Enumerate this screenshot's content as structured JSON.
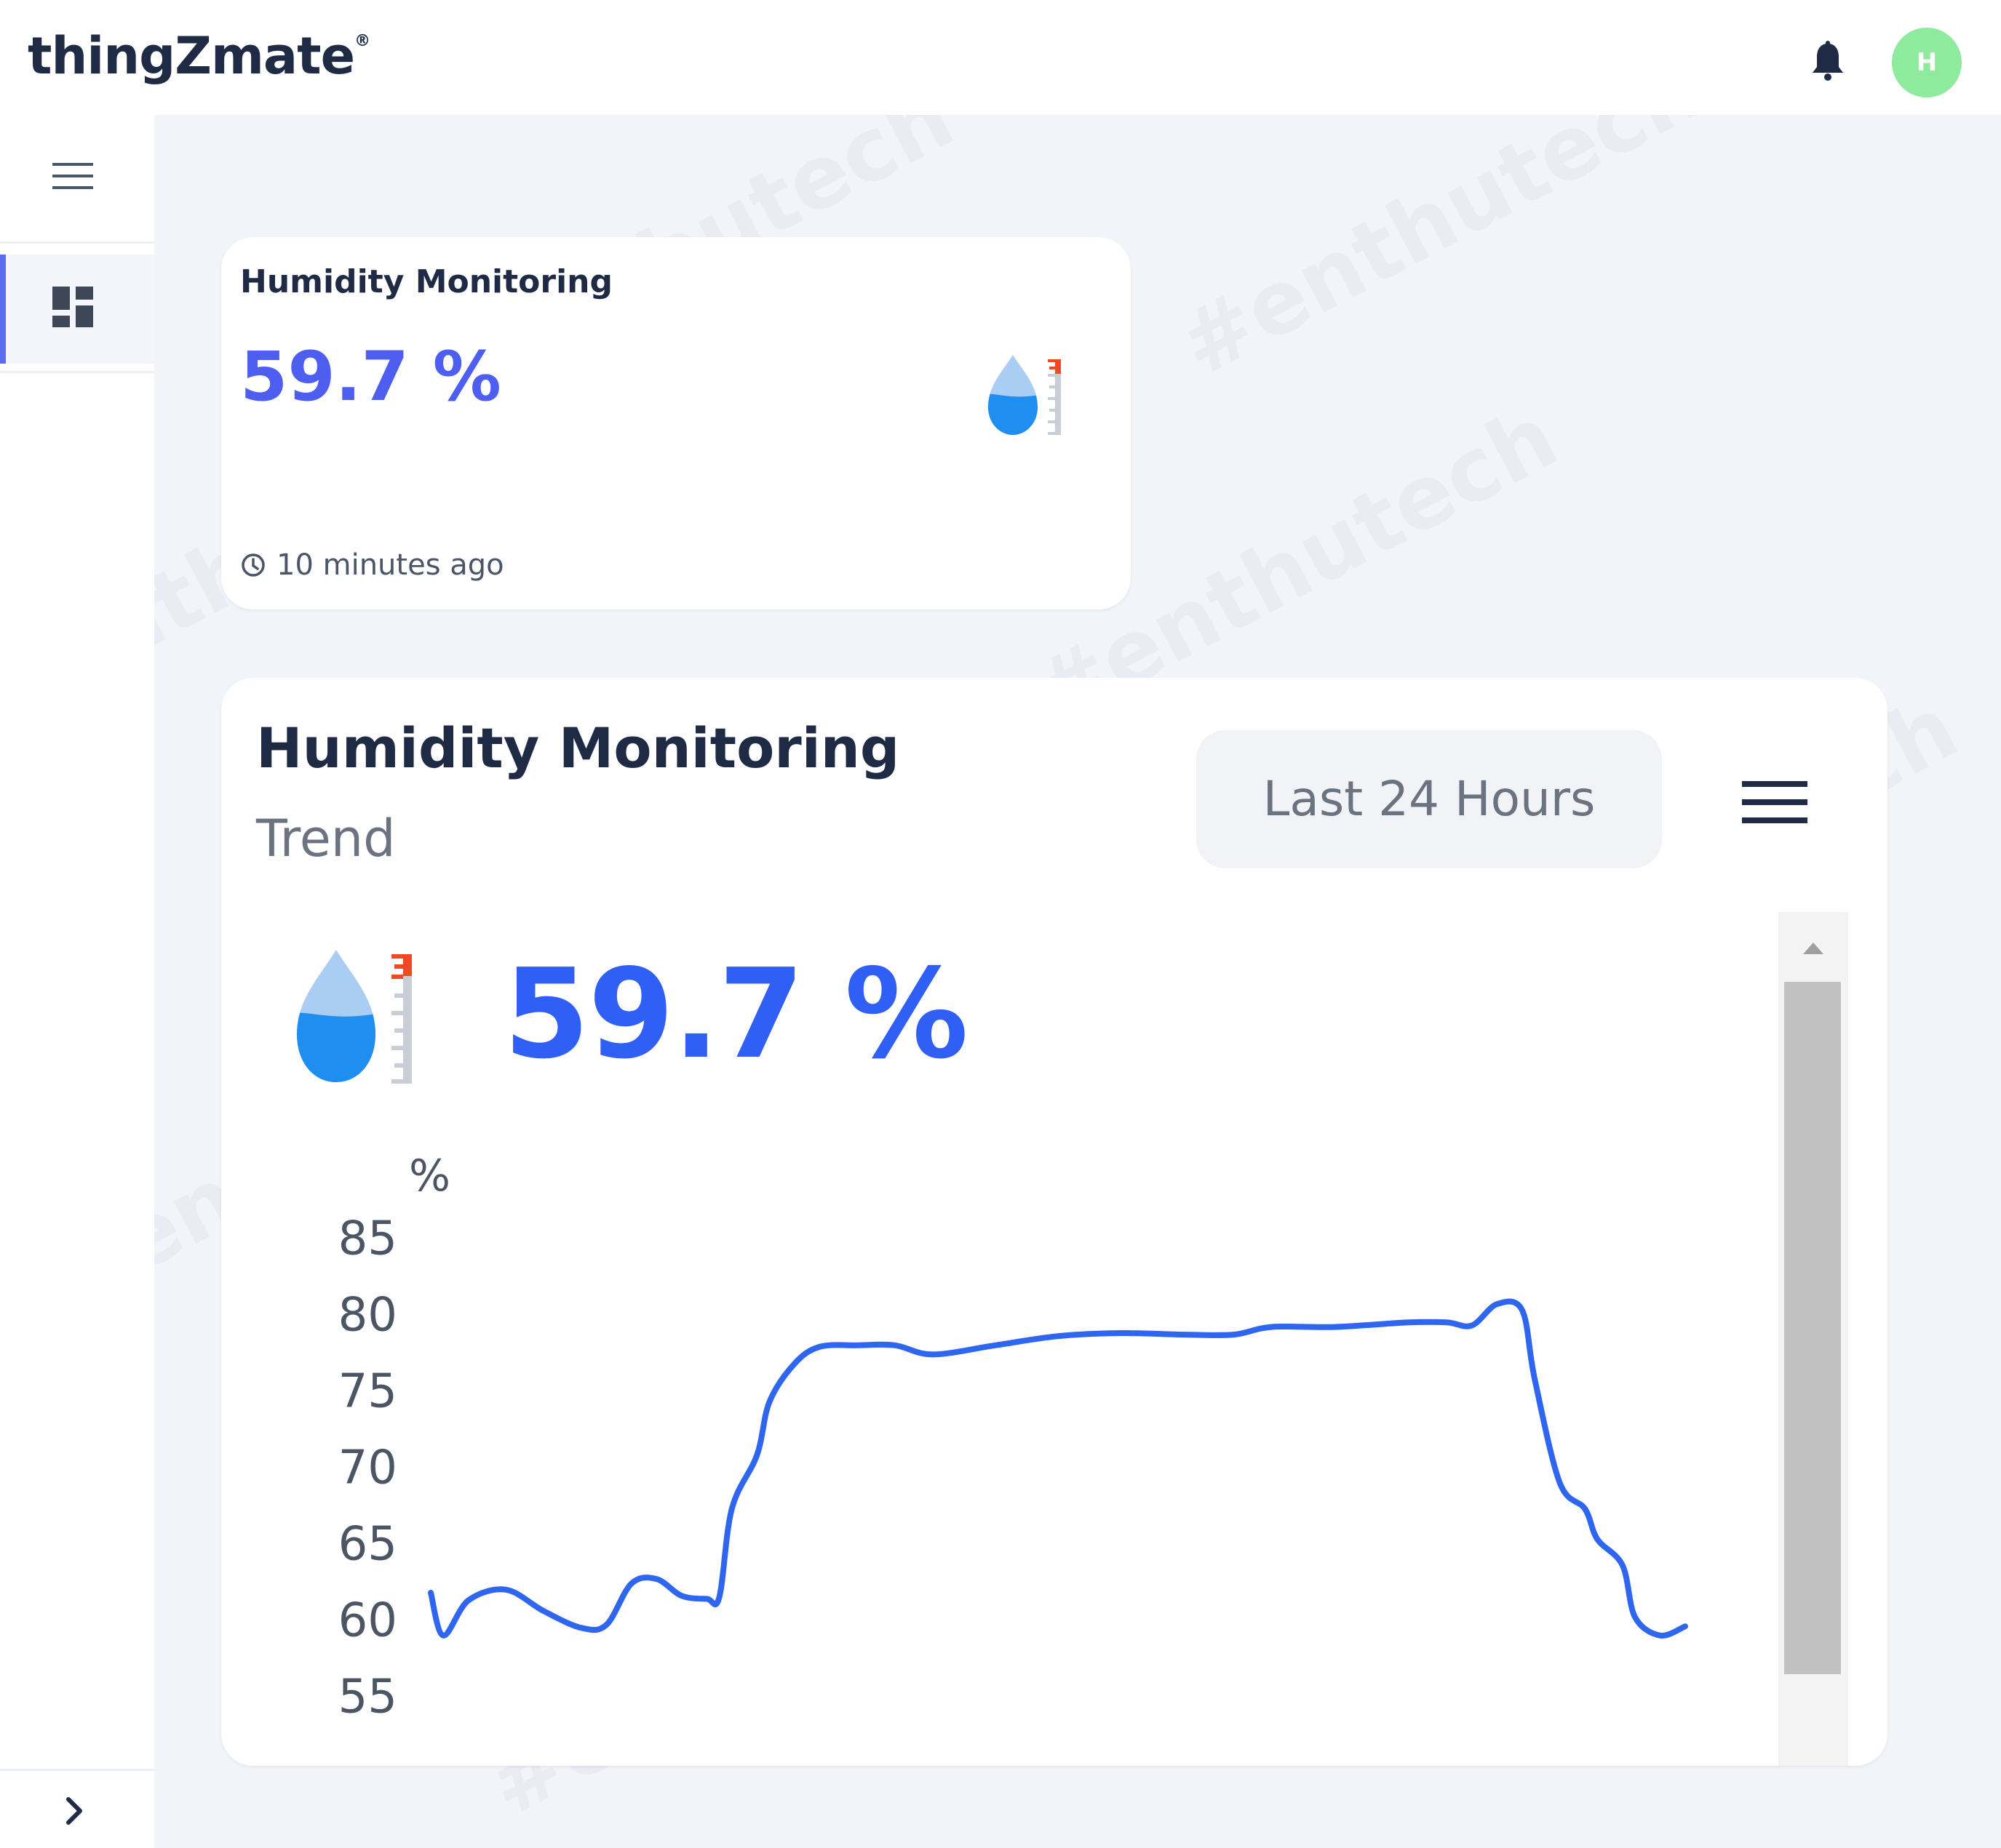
{
  "header": {
    "logo": "thingZmate",
    "logo_mark": "®",
    "bell_icon": "bell-icon",
    "avatar_initial": "H"
  },
  "sidebar": {
    "menu_icon": "hamburger-icon",
    "items": [
      {
        "icon": "dashboard-icon",
        "active": true
      }
    ],
    "expand_icon": "chevron-right-icon"
  },
  "widget_card": {
    "title": "Humidity Monitoring",
    "value": "59.7 %",
    "updated": "10 minutes ago",
    "icon": "humidity-drop-icon"
  },
  "trend_card": {
    "title": "Humidity Monitoring",
    "subtitle": "Trend",
    "range_button": "Last 24 Hours",
    "menu_icon": "hamburger-icon",
    "value": "59.7 %",
    "icon": "humidity-drop-icon"
  },
  "watermark_text": "#enthutech",
  "colors": {
    "accent": "#4d5ef0",
    "trend_value": "#2f5ff5",
    "line": "#2f66f0",
    "avatar": "#8eea9c"
  },
  "chart_data": {
    "type": "line",
    "ylabel": "%",
    "yticks": [
      85,
      80,
      75,
      70,
      65,
      60,
      55
    ],
    "ylim": [
      55,
      85
    ],
    "grid": false,
    "series": [
      {
        "values": [
          [
            0.0,
            62.0
          ],
          [
            0.01,
            59.2
          ],
          [
            0.03,
            61.5
          ],
          [
            0.06,
            62.2
          ],
          [
            0.09,
            60.8
          ],
          [
            0.12,
            59.7
          ],
          [
            0.14,
            59.9
          ],
          [
            0.16,
            62.6
          ],
          [
            0.18,
            62.9
          ],
          [
            0.2,
            61.8
          ],
          [
            0.22,
            61.6
          ],
          [
            0.23,
            61.7
          ],
          [
            0.24,
            67.5
          ],
          [
            0.26,
            71.0
          ],
          [
            0.27,
            74.5
          ],
          [
            0.29,
            77.0
          ],
          [
            0.31,
            78.1
          ],
          [
            0.34,
            78.2
          ],
          [
            0.37,
            78.2
          ],
          [
            0.4,
            77.6
          ],
          [
            0.45,
            78.2
          ],
          [
            0.5,
            78.8
          ],
          [
            0.55,
            79.0
          ],
          [
            0.6,
            78.9
          ],
          [
            0.64,
            78.9
          ],
          [
            0.67,
            79.4
          ],
          [
            0.72,
            79.4
          ],
          [
            0.78,
            79.7
          ],
          [
            0.81,
            79.7
          ],
          [
            0.83,
            79.5
          ],
          [
            0.85,
            80.9
          ],
          [
            0.87,
            80.5
          ],
          [
            0.88,
            76.0
          ],
          [
            0.9,
            69.2
          ],
          [
            0.92,
            67.5
          ],
          [
            0.93,
            65.5
          ],
          [
            0.95,
            63.8
          ],
          [
            0.96,
            60.4
          ],
          [
            0.98,
            59.2
          ],
          [
            1.0,
            59.8
          ]
        ]
      }
    ]
  }
}
